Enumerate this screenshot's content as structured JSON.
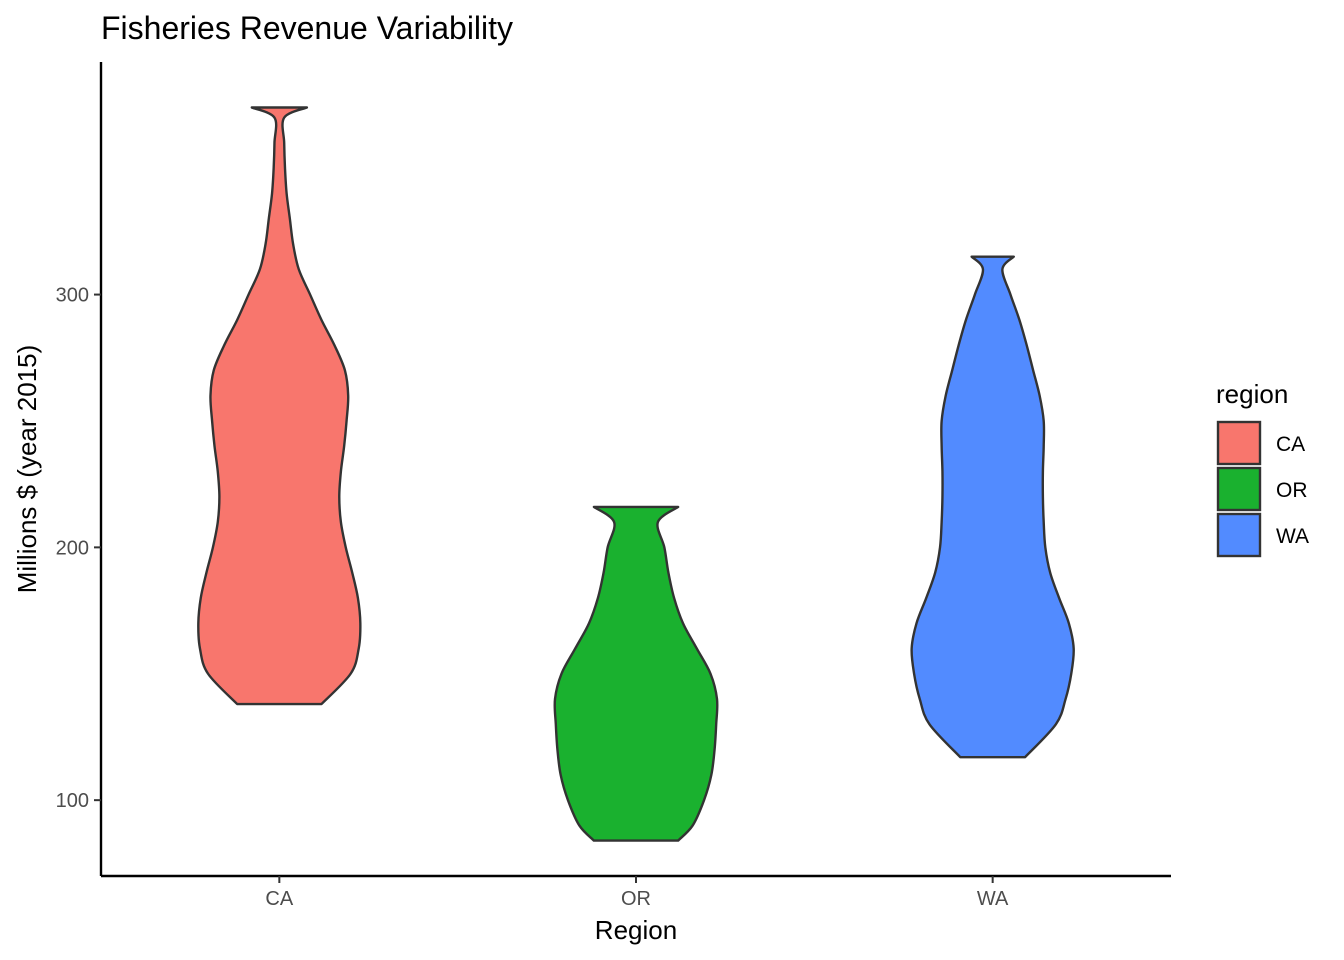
{
  "chart_data": {
    "type": "violin",
    "title": "Fisheries Revenue Variability",
    "xlabel": "Region",
    "ylabel": "Millions $ (year 2015)",
    "categories": [
      "CA",
      "OR",
      "WA"
    ],
    "yticks": [
      100,
      200,
      300
    ],
    "ylim": [
      70,
      392
    ],
    "grid": false,
    "legend": {
      "title": "region",
      "position": "right",
      "entries": [
        "CA",
        "OR",
        "WA"
      ]
    },
    "colors": [
      "#F8766D",
      "#1AB12F",
      "#528BFF"
    ],
    "series": [
      {
        "name": "CA",
        "min": 138,
        "max": 374,
        "density_profile": [
          [
            138,
            0.52
          ],
          [
            150,
            0.88
          ],
          [
            160,
            0.98
          ],
          [
            170,
            1.0
          ],
          [
            180,
            0.97
          ],
          [
            190,
            0.9
          ],
          [
            200,
            0.82
          ],
          [
            210,
            0.76
          ],
          [
            220,
            0.74
          ],
          [
            230,
            0.76
          ],
          [
            240,
            0.8
          ],
          [
            250,
            0.83
          ],
          [
            260,
            0.85
          ],
          [
            270,
            0.81
          ],
          [
            280,
            0.68
          ],
          [
            290,
            0.52
          ],
          [
            300,
            0.38
          ],
          [
            310,
            0.24
          ],
          [
            320,
            0.17
          ],
          [
            330,
            0.13
          ],
          [
            340,
            0.09
          ],
          [
            350,
            0.07
          ],
          [
            360,
            0.06
          ],
          [
            370,
            0.06
          ],
          [
            374,
            0.34
          ]
        ]
      },
      {
        "name": "OR",
        "min": 84,
        "max": 216,
        "density_profile": [
          [
            84,
            0.52
          ],
          [
            90,
            0.7
          ],
          [
            100,
            0.84
          ],
          [
            110,
            0.93
          ],
          [
            120,
            0.97
          ],
          [
            130,
            0.99
          ],
          [
            140,
            1.0
          ],
          [
            150,
            0.92
          ],
          [
            160,
            0.75
          ],
          [
            170,
            0.58
          ],
          [
            180,
            0.47
          ],
          [
            190,
            0.4
          ],
          [
            200,
            0.35
          ],
          [
            210,
            0.27
          ],
          [
            216,
            0.52
          ]
        ]
      },
      {
        "name": "WA",
        "min": 117,
        "max": 315,
        "density_profile": [
          [
            117,
            0.4
          ],
          [
            130,
            0.78
          ],
          [
            140,
            0.9
          ],
          [
            150,
            0.97
          ],
          [
            160,
            1.0
          ],
          [
            170,
            0.94
          ],
          [
            180,
            0.82
          ],
          [
            190,
            0.71
          ],
          [
            200,
            0.65
          ],
          [
            210,
            0.63
          ],
          [
            220,
            0.62
          ],
          [
            230,
            0.62
          ],
          [
            240,
            0.63
          ],
          [
            250,
            0.63
          ],
          [
            260,
            0.58
          ],
          [
            270,
            0.5
          ],
          [
            280,
            0.42
          ],
          [
            290,
            0.33
          ],
          [
            300,
            0.22
          ],
          [
            310,
            0.12
          ],
          [
            315,
            0.26
          ]
        ]
      }
    ]
  }
}
